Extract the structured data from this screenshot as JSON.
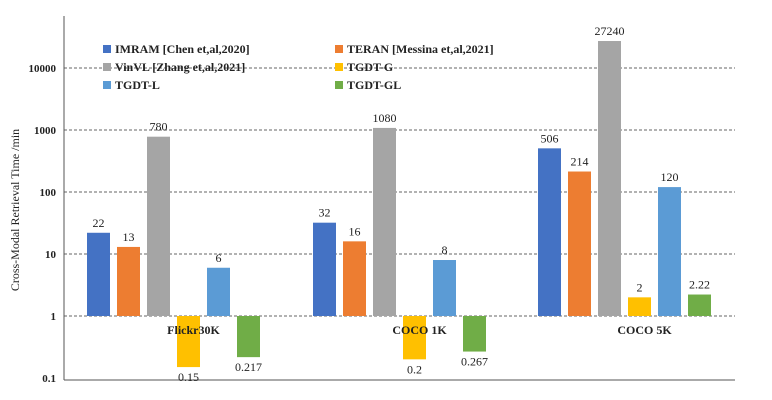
{
  "chart_data": {
    "type": "bar",
    "yscale": "log",
    "ylabel": "Cross-Modal Retrieval Time /min",
    "ylim": [
      0.1,
      40000
    ],
    "yticks": [
      0.1,
      1,
      10,
      100,
      1000,
      10000
    ],
    "ytick_labels": [
      "0.1",
      "1",
      "10",
      "100",
      "1000",
      "10000"
    ],
    "baseline": 1,
    "grid": true,
    "categories": [
      "Flickr30K",
      "COCO 1K",
      "COCO 5K"
    ],
    "series": [
      {
        "name": "IMRAM [Chen et,al,2020]",
        "color": "#4472c4",
        "values": [
          22,
          32,
          506
        ],
        "labels": [
          "22",
          "32",
          "506"
        ]
      },
      {
        "name": "TERAN [Messina et,al,2021]",
        "color": "#ed7d31",
        "values": [
          13,
          16,
          214
        ],
        "labels": [
          "13",
          "16",
          "214"
        ]
      },
      {
        "name": "VinVL [Zhang et,al,2021]",
        "color": "#a5a5a5",
        "values": [
          780,
          1080,
          27240
        ],
        "labels": [
          "780",
          "1080",
          "27240"
        ]
      },
      {
        "name": "TGDT-G",
        "color": "#ffc000",
        "values": [
          0.15,
          0.2,
          2
        ],
        "labels": [
          "0.15",
          "0.2",
          "2"
        ]
      },
      {
        "name": "TGDT-L",
        "color": "#5b9bd5",
        "values": [
          6,
          8,
          120
        ],
        "labels": [
          "6",
          "8",
          "120"
        ]
      },
      {
        "name": "TGDT-GL",
        "color": "#70ad47",
        "values": [
          0.217,
          0.267,
          2.22
        ],
        "labels": [
          "0.217",
          "0.267",
          "2.22"
        ]
      }
    ],
    "legend_position": "top-center"
  }
}
